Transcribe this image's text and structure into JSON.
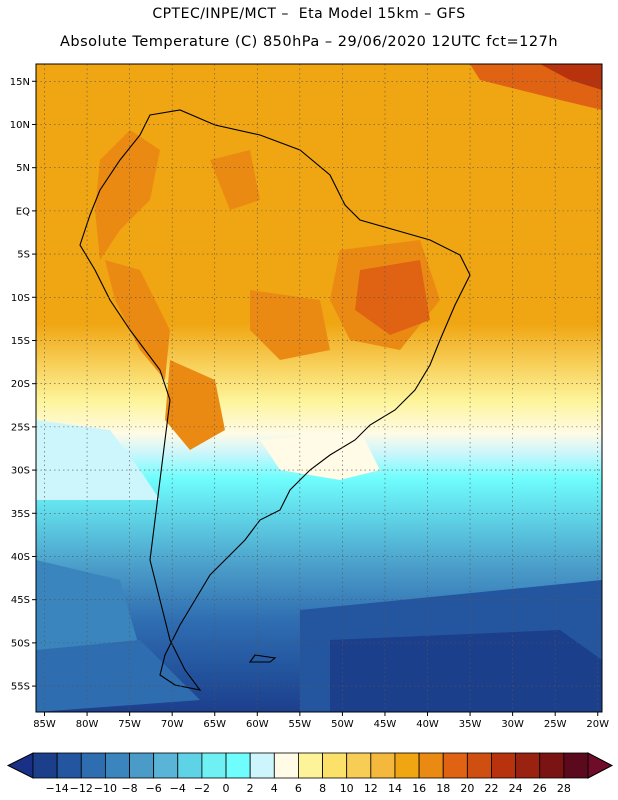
{
  "header": {
    "line1": "CPTEC/INPE/MCT –  Eta Model 15km – GFS",
    "line2": "Absolute Temperature (C) 850hPa – 29/06/2020 12UTC fct=127h"
  },
  "map": {
    "extent": {
      "lon_min": -86,
      "lon_max": -19.5,
      "lat_min": -58,
      "lat_max": 17
    },
    "lat_ticks": [
      {
        "value": 15,
        "label": "15N"
      },
      {
        "value": 10,
        "label": "10N"
      },
      {
        "value": 5,
        "label": "5N"
      },
      {
        "value": 0,
        "label": "EQ"
      },
      {
        "value": -5,
        "label": "5S"
      },
      {
        "value": -10,
        "label": "10S"
      },
      {
        "value": -15,
        "label": "15S"
      },
      {
        "value": -20,
        "label": "20S"
      },
      {
        "value": -25,
        "label": "25S"
      },
      {
        "value": -30,
        "label": "30S"
      },
      {
        "value": -35,
        "label": "35S"
      },
      {
        "value": -40,
        "label": "40S"
      },
      {
        "value": -45,
        "label": "45S"
      },
      {
        "value": -50,
        "label": "50S"
      },
      {
        "value": -55,
        "label": "55S"
      }
    ],
    "lon_ticks": [
      {
        "value": -85,
        "label": "85W"
      },
      {
        "value": -80,
        "label": "80W"
      },
      {
        "value": -75,
        "label": "75W"
      },
      {
        "value": -70,
        "label": "70W"
      },
      {
        "value": -65,
        "label": "65W"
      },
      {
        "value": -60,
        "label": "60W"
      },
      {
        "value": -55,
        "label": "55W"
      },
      {
        "value": -50,
        "label": "50W"
      },
      {
        "value": -45,
        "label": "45W"
      },
      {
        "value": -40,
        "label": "40W"
      },
      {
        "value": -35,
        "label": "35W"
      },
      {
        "value": -30,
        "label": "30W"
      },
      {
        "value": -25,
        "label": "25W"
      },
      {
        "value": -20,
        "label": "20W"
      }
    ],
    "grid": true
  },
  "colorbar": {
    "labels": [
      "-14",
      "-12",
      "-10",
      "-8",
      "-6",
      "-4",
      "-2",
      "0",
      "2",
      "4",
      "6",
      "8",
      "10",
      "12",
      "14",
      "16",
      "18",
      "20",
      "22",
      "24",
      "26",
      "28"
    ],
    "colors": [
      "#1c3f8c",
      "#2456a0",
      "#2f6db1",
      "#3a85be",
      "#4a9bc8",
      "#5ab4d7",
      "#5fd3e6",
      "#6ff0f2",
      "#6ffdfd",
      "#ccf6fb",
      "#fffbe6",
      "#fdf49a",
      "#fbe06a",
      "#f7cd55",
      "#f4b93c",
      "#f0a512",
      "#eb8a12",
      "#e06313",
      "#cf4f10",
      "#b8320d",
      "#9a2210",
      "#7a1413",
      "#5a0a1c"
    ],
    "under_color": "#1a2f86",
    "over_color": "#6e0c2a"
  }
}
